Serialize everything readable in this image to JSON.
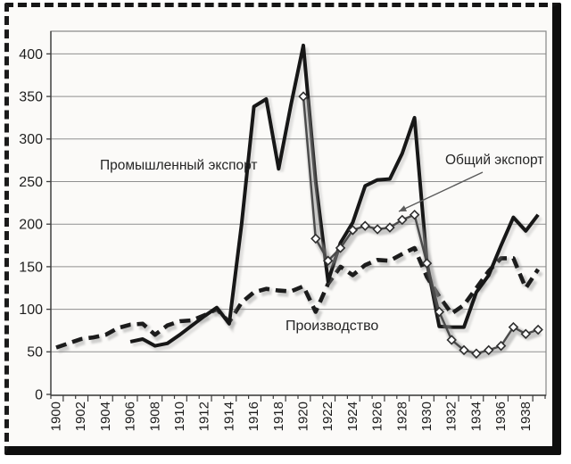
{
  "page": {
    "frame_color": "#141414",
    "paper_color": "#fbfaf8",
    "line_color": "#1a1a1a",
    "shadow_color": "#999999",
    "grid_color": "#8f8f8f"
  },
  "chart_data": {
    "type": "line",
    "title": "",
    "x": [
      1900,
      1901,
      1902,
      1903,
      1904,
      1905,
      1906,
      1907,
      1908,
      1909,
      1910,
      1911,
      1912,
      1913,
      1914,
      1915,
      1916,
      1917,
      1918,
      1919,
      1920,
      1921,
      1922,
      1923,
      1924,
      1925,
      1926,
      1927,
      1928,
      1929,
      1930,
      1931,
      1932,
      1933,
      1934,
      1935,
      1936,
      1937,
      1938,
      1939
    ],
    "x_label_every": 2,
    "x_tick_labels": [
      "1900",
      "1902",
      "1904",
      "1906",
      "1908",
      "1910",
      "1912",
      "1914",
      "1916",
      "1918",
      "1920",
      "1922",
      "1924",
      "1926",
      "1928",
      "1930",
      "1932",
      "1934",
      "1936",
      "1938"
    ],
    "ylim": [
      0,
      425
    ],
    "yticks": [
      0,
      50,
      100,
      150,
      200,
      250,
      300,
      350,
      400
    ],
    "grid": "horizontal",
    "legend_position": "inline-annotations",
    "series": [
      {
        "name": "Производство",
        "style": "dashed",
        "color": "#1c1c1c",
        "values": [
          55,
          60,
          65,
          67,
          70,
          78,
          82,
          83,
          70,
          81,
          86,
          87,
          93,
          100,
          85,
          108,
          120,
          124,
          122,
          121,
          127,
          97,
          130,
          150,
          140,
          152,
          158,
          157,
          165,
          172,
          138,
          115,
          95,
          105,
          125,
          145,
          160,
          160,
          125,
          147
        ]
      },
      {
        "name": "Промышленный экспорт",
        "style": "solid",
        "color": "#171717",
        "values": [
          null,
          null,
          null,
          null,
          null,
          null,
          62,
          65,
          57,
          60,
          70,
          81,
          92,
          102,
          83,
          200,
          338,
          347,
          265,
          340,
          410,
          250,
          133,
          178,
          202,
          245,
          252,
          253,
          283,
          325,
          155,
          80,
          79,
          79,
          120,
          140,
          175,
          208,
          192,
          211
        ]
      },
      {
        "name": "Общий экспорт",
        "style": "line-diamond-markers",
        "color": "#4a4a4a",
        "values": [
          null,
          null,
          null,
          null,
          null,
          null,
          null,
          null,
          null,
          null,
          null,
          null,
          null,
          null,
          null,
          null,
          null,
          null,
          null,
          null,
          350,
          183,
          157,
          172,
          193,
          198,
          194,
          196,
          205,
          211,
          154,
          97,
          64,
          52,
          48,
          52,
          57,
          79,
          71,
          76
        ]
      }
    ],
    "annotations": [
      {
        "text": "Промышленный экспорт",
        "px": [
          112,
          190
        ],
        "anchor": "start",
        "font_size": 15.5
      },
      {
        "text": "Общий экспорт",
        "px": [
          499,
          184
        ],
        "anchor": "start",
        "font_size": 15.5
      },
      {
        "text": "Производство",
        "px": [
          320,
          370
        ],
        "anchor": "start",
        "font_size": 16
      }
    ],
    "arrow": {
      "from": [
        541,
        193
      ],
      "to": [
        447,
        237
      ]
    }
  }
}
